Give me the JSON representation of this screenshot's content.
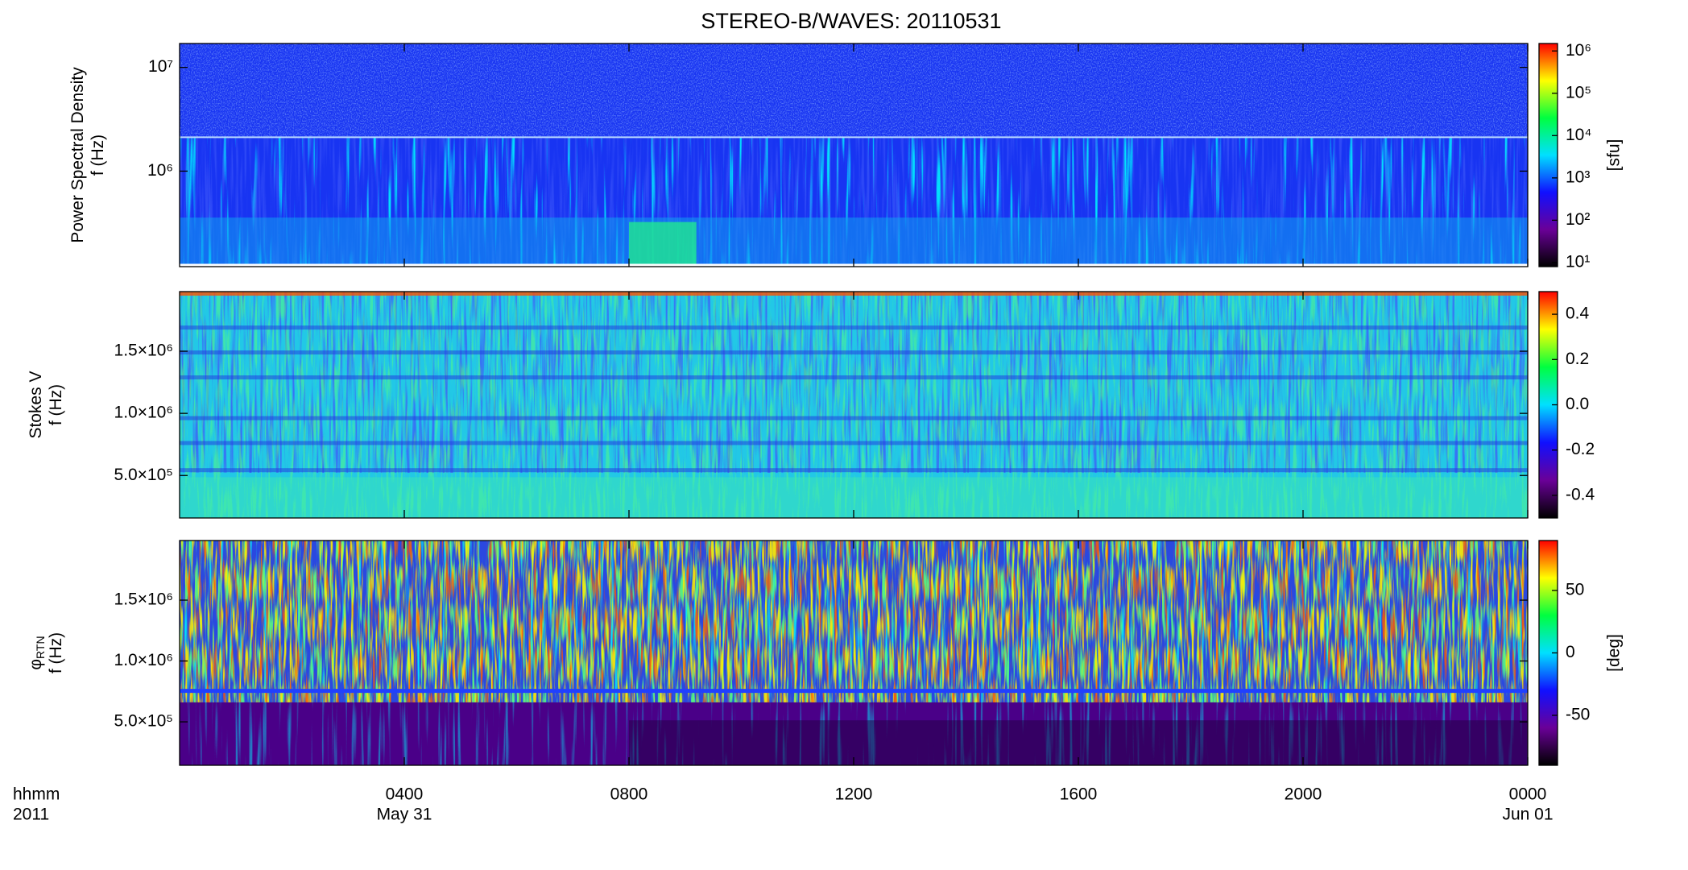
{
  "title": "STEREO-B/WAVES: 20110531",
  "colormap": [
    "#000000",
    "#6a0098",
    "#1010ff",
    "#00e0ff",
    "#00ff40",
    "#ffff00",
    "#ff0000"
  ],
  "x_axis": {
    "label": "hhmm",
    "label2": "2011",
    "xlim": [
      0,
      24
    ],
    "xticks": [
      {
        "value": 4,
        "label": "0400"
      },
      {
        "value": 8,
        "label": "0800"
      },
      {
        "value": 12,
        "label": "1200"
      },
      {
        "value": 16,
        "label": "1600"
      },
      {
        "value": 20,
        "label": "2000"
      },
      {
        "value": 24,
        "label": "0000"
      }
    ],
    "date_labels": [
      {
        "value": 4,
        "label": "May 31"
      },
      {
        "value": 24,
        "label": "Jun 01"
      }
    ]
  },
  "chart_data": [
    {
      "type": "spectrogram",
      "ylabel": [
        "Power Spectral Density",
        "f (Hz)"
      ],
      "ylog": true,
      "ylim": [
        120000,
        17000000
      ],
      "yticks": [
        {
          "value": 1000000,
          "label": "10⁶"
        },
        {
          "value": 10000000,
          "label": "10⁷"
        }
      ],
      "clog": true,
      "clim": [
        8,
        1500000
      ],
      "cticks": [
        {
          "value": 10,
          "label": "10¹"
        },
        {
          "value": 100,
          "label": "10²"
        },
        {
          "value": 1000,
          "label": "10³"
        },
        {
          "value": 10000,
          "label": "10⁴"
        },
        {
          "value": 100000,
          "label": "10⁵"
        },
        {
          "value": 1000000,
          "label": "10⁶"
        }
      ],
      "clabel": "[sfu]"
    },
    {
      "type": "spectrogram",
      "ylabel": [
        "Stokes V",
        "f (Hz)"
      ],
      "ylog": false,
      "ylim": [
        158000,
        1980000
      ],
      "yticks": [
        {
          "value": 500000,
          "label": "5.0×10⁵"
        },
        {
          "value": 1000000,
          "label": "1.0×10⁶"
        },
        {
          "value": 1500000,
          "label": "1.5×10⁶"
        }
      ],
      "clog": false,
      "clim": [
        -0.5,
        0.5
      ],
      "cticks": [
        -0.4,
        -0.2,
        {
          "value": 0,
          "label": "0.0"
        },
        0.2,
        0.4
      ]
    },
    {
      "type": "spectrogram",
      "ylabel": [
        "φ",
        "f (Hz)"
      ],
      "ylabel_sub": "RTN",
      "ylog": false,
      "ylim": [
        143000,
        1990000
      ],
      "yticks": [
        {
          "value": 500000,
          "label": "5.0×10⁵"
        },
        {
          "value": 1000000,
          "label": "1.0×10⁶"
        },
        {
          "value": 1500000,
          "label": "1.5×10⁶"
        }
      ],
      "clog": false,
      "clim": [
        -90,
        90
      ],
      "cticks": [
        -50,
        0,
        50
      ],
      "clabel": "[deg]"
    }
  ]
}
